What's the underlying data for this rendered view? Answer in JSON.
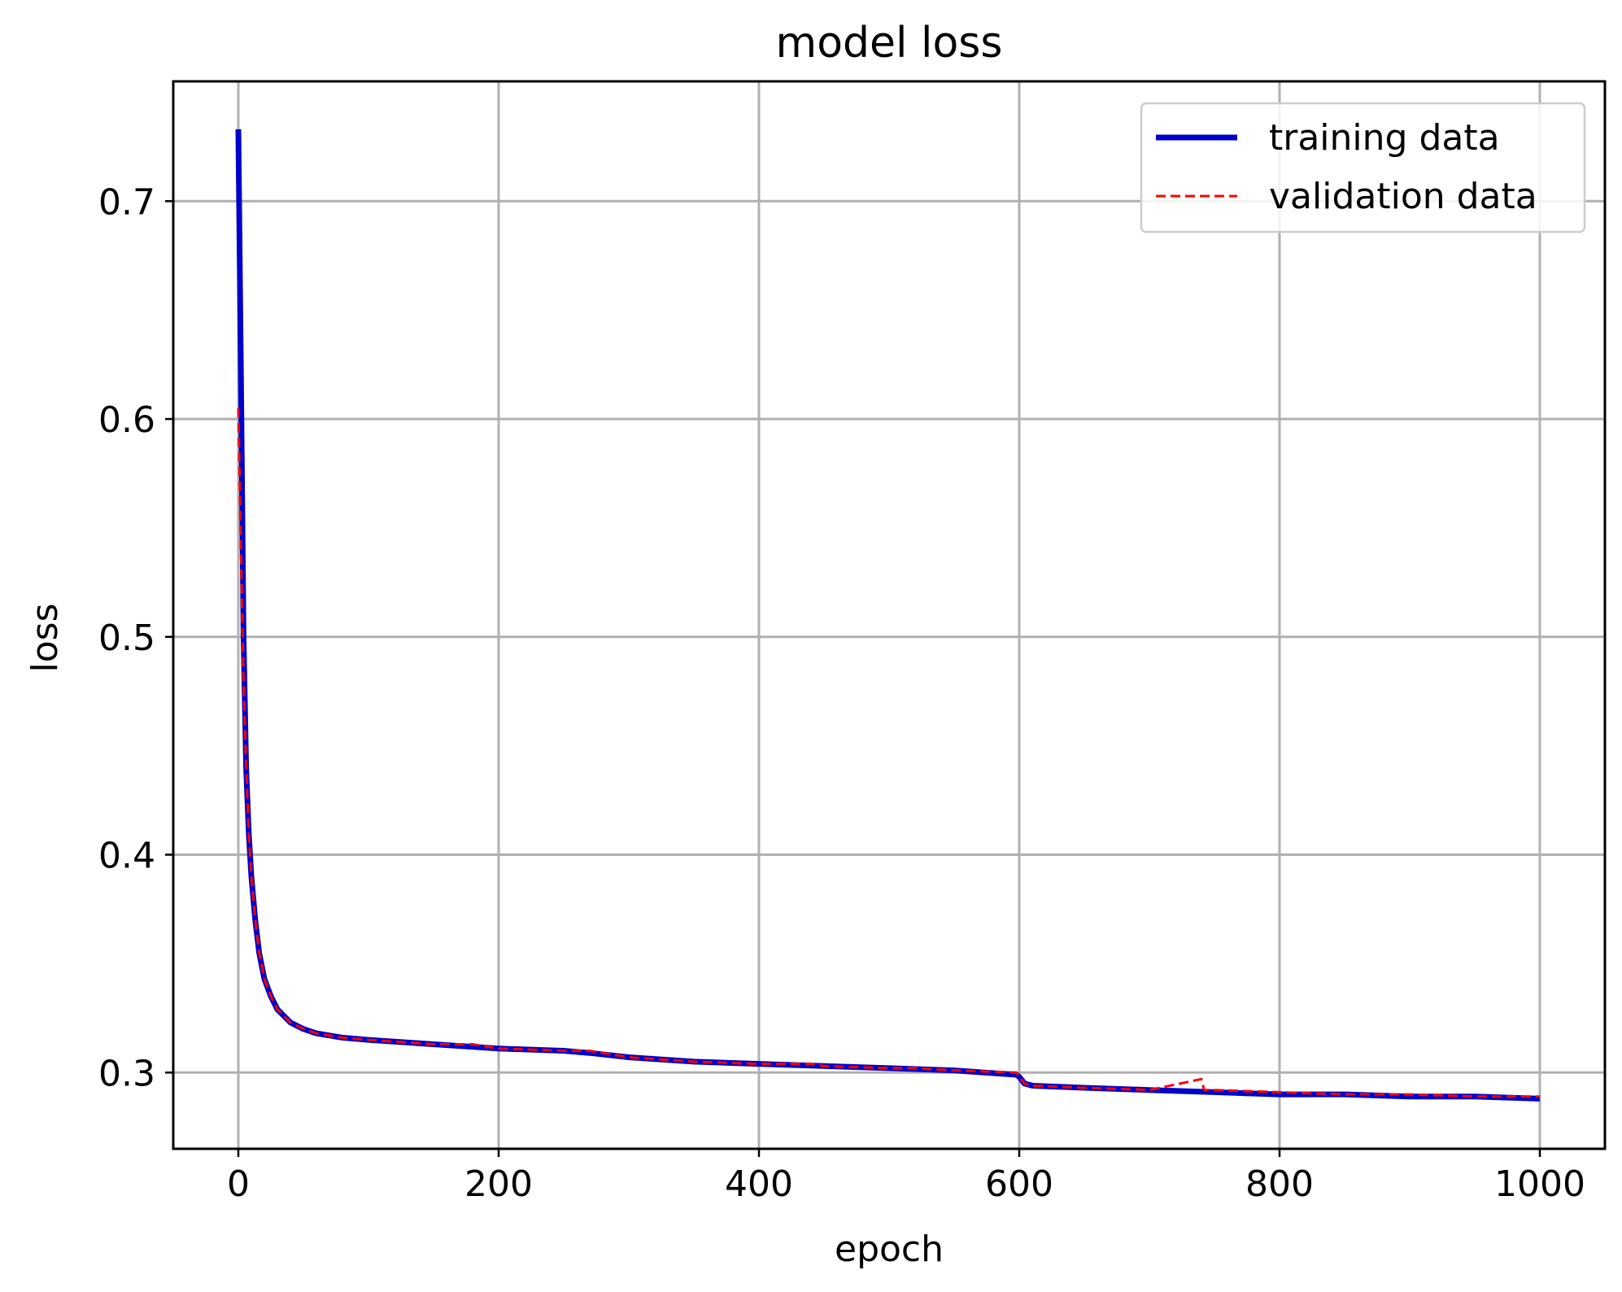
{
  "chart_data": {
    "type": "line",
    "title": "model loss",
    "xlabel": "epoch",
    "ylabel": "loss",
    "xlim": [
      -50,
      1050
    ],
    "ylim": [
      0.265,
      0.755
    ],
    "xticks": [
      0,
      200,
      400,
      600,
      800,
      1000
    ],
    "xtick_labels": [
      "0",
      "200",
      "400",
      "600",
      "800",
      "1000"
    ],
    "yticks": [
      0.3,
      0.4,
      0.5,
      0.6,
      0.7
    ],
    "ytick_labels": [
      "0.3",
      "0.4",
      "0.5",
      "0.6",
      "0.7"
    ],
    "grid": true,
    "legend_position": "top-right",
    "series": [
      {
        "name": "training data",
        "color": "#0000cc",
        "style": "solid",
        "x": [
          0,
          2,
          4,
          6,
          8,
          10,
          13,
          16,
          20,
          25,
          30,
          40,
          50,
          60,
          80,
          100,
          150,
          200,
          250,
          270,
          300,
          350,
          400,
          450,
          500,
          550,
          598,
          600,
          604,
          610,
          650,
          700,
          750,
          800,
          850,
          900,
          950,
          1000
        ],
        "y": [
          0.733,
          0.62,
          0.5,
          0.44,
          0.41,
          0.39,
          0.37,
          0.355,
          0.343,
          0.335,
          0.329,
          0.323,
          0.32,
          0.318,
          0.316,
          0.315,
          0.313,
          0.311,
          0.31,
          0.309,
          0.307,
          0.305,
          0.304,
          0.303,
          0.302,
          0.301,
          0.299,
          0.298,
          0.295,
          0.294,
          0.293,
          0.292,
          0.291,
          0.29,
          0.29,
          0.289,
          0.289,
          0.288
        ]
      },
      {
        "name": "validation data",
        "color": "#ff0000",
        "style": "dashed",
        "x": [
          0,
          2,
          4,
          6,
          8,
          10,
          13,
          16,
          20,
          25,
          30,
          40,
          50,
          60,
          80,
          100,
          150,
          180,
          200,
          250,
          270,
          300,
          350,
          400,
          440,
          450,
          500,
          520,
          550,
          598,
          600,
          604,
          610,
          650,
          700,
          740,
          742,
          750,
          800,
          850,
          900,
          950,
          1000
        ],
        "y": [
          0.605,
          0.54,
          0.48,
          0.44,
          0.41,
          0.39,
          0.37,
          0.355,
          0.343,
          0.335,
          0.329,
          0.323,
          0.32,
          0.318,
          0.316,
          0.315,
          0.313,
          0.313,
          0.311,
          0.31,
          0.31,
          0.307,
          0.305,
          0.304,
          0.304,
          0.303,
          0.302,
          0.302,
          0.301,
          0.3,
          0.298,
          0.295,
          0.294,
          0.293,
          0.292,
          0.297,
          0.292,
          0.292,
          0.291,
          0.29,
          0.29,
          0.289,
          0.289
        ]
      }
    ]
  }
}
